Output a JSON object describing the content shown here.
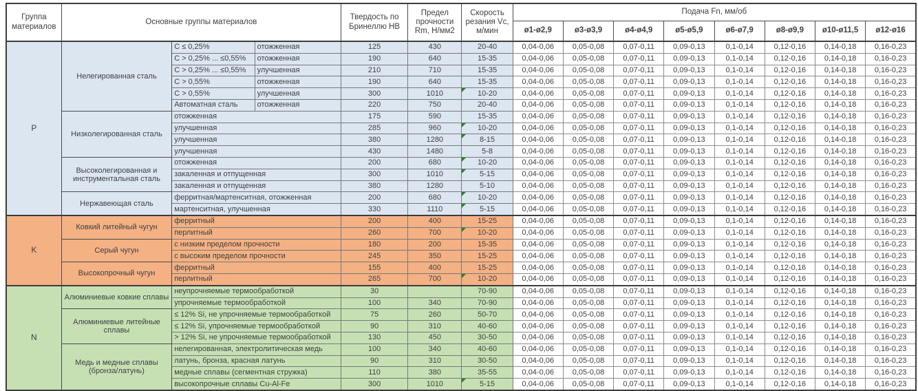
{
  "header": {
    "group": "Группа материалов",
    "main_groups": "Основные группы материалов",
    "hardness": "Твердость по Бринеллю HB",
    "strength": "Предел прочности Rm, Н/мм2",
    "speed": "Скорость резания Vc, м/мин",
    "feed": "Подача Fn, мм/об",
    "feed_columns": [
      "ø1-ø2,9",
      "ø3-ø3,9",
      "ø4-ø4,9",
      "ø5-ø5,9",
      "ø6-ø7,9",
      "ø8-ø9,9",
      "ø10-ø11,5",
      "ø12-ø16"
    ]
  },
  "feed_values": [
    "0,04-0,06",
    "0,05-0,08",
    "0,07-0,11",
    "0,09-0,13",
    "0,1-0,14",
    "0,12-0,16",
    "0,14-0,18",
    "0,16-0,23"
  ],
  "colors": {
    "P": "#DCE6F1",
    "K": "#F4B183",
    "N": "#C6E0B4",
    "indicator": "#1E8A1E"
  },
  "groups": [
    {
      "code": "P",
      "subgroups": [
        {
          "name": "Нелегированная сталь",
          "rows": [
            {
              "c1": "C ≤ 0,25%",
              "c2": "отожженная",
              "hb": "125",
              "rm": "430",
              "vc": "20-40",
              "flag": false
            },
            {
              "c1": "C > 0,25% ... ≤0,55%",
              "c2": "отожженная",
              "hb": "190",
              "rm": "640",
              "vc": "15-35",
              "flag": false
            },
            {
              "c1": "C > 0,25% ... ≤0,55%",
              "c2": "улучшенная",
              "hb": "210",
              "rm": "710",
              "vc": "15-35",
              "flag": false
            },
            {
              "c1": "C > 0,55%",
              "c2": "отожженная",
              "hb": "190",
              "rm": "640",
              "vc": "15-35",
              "flag": false
            },
            {
              "c1": "C > 0,55%",
              "c2": "улучшенная",
              "hb": "300",
              "rm": "1010",
              "vc": "10-20",
              "flag": true
            },
            {
              "c1": "Автоматная сталь",
              "c2": "отожженная",
              "hb": "220",
              "rm": "750",
              "vc": "20-40",
              "flag": false
            }
          ]
        },
        {
          "name": "Низколегированная сталь",
          "rows": [
            {
              "desc": "отожженная",
              "hb": "175",
              "rm": "590",
              "vc": "15-35",
              "flag": false
            },
            {
              "desc": "улучшенная",
              "hb": "285",
              "rm": "960",
              "vc": "10-20",
              "flag": true
            },
            {
              "desc": "улучшенная",
              "hb": "380",
              "rm": "1280",
              "vc": "8-15",
              "flag": true
            },
            {
              "desc": "улучшенная",
              "hb": "430",
              "rm": "1480",
              "vc": "5-8",
              "flag": false
            }
          ]
        },
        {
          "name": "Высоколегированная и инструментальная сталь",
          "rows": [
            {
              "desc": "отожженная",
              "hb": "200",
              "rm": "680",
              "vc": "10-20",
              "flag": true
            },
            {
              "desc": "закаленная и отпущенная",
              "hb": "300",
              "rm": "1010",
              "vc": "5-15",
              "flag": true
            },
            {
              "desc": "закаленная и отпущенная",
              "hb": "380",
              "rm": "1280",
              "vc": "5-10",
              "flag": false
            }
          ]
        },
        {
          "name": "Нержавеющая сталь",
          "rows": [
            {
              "desc": "ферритная/мартенситная, отожженная",
              "hb": "200",
              "rm": "680",
              "vc": "10-20",
              "flag": true
            },
            {
              "desc": "мартенситная, улучшенная",
              "hb": "330",
              "rm": "1110",
              "vc": "5-15",
              "flag": true
            }
          ]
        }
      ]
    },
    {
      "code": "K",
      "subgroups": [
        {
          "name": "Ковкий литейный чугун",
          "rows": [
            {
              "desc": "ферритный",
              "hb": "200",
              "rm": "400",
              "vc": "15-25",
              "flag": false
            },
            {
              "desc": "перлитный",
              "hb": "260",
              "rm": "700",
              "vc": "10-20",
              "flag": true
            }
          ]
        },
        {
          "name": "Серый чугун",
          "rows": [
            {
              "desc": "с низким пределом прочности",
              "hb": "180",
              "rm": "200",
              "vc": "15-35",
              "flag": false
            },
            {
              "desc": "с высоким пределом прочности",
              "hb": "245",
              "rm": "350",
              "vc": "15-25",
              "flag": false
            }
          ]
        },
        {
          "name": "Высокопрочный чугун",
          "rows": [
            {
              "desc": "ферритный",
              "hb": "155",
              "rm": "400",
              "vc": "15-25",
              "flag": false
            },
            {
              "desc": "перлитный",
              "hb": "265",
              "rm": "700",
              "vc": "10-20",
              "flag": true
            }
          ]
        }
      ]
    },
    {
      "code": "N",
      "subgroups": [
        {
          "name": "Алюминиевые ковкие сплавы",
          "rows": [
            {
              "desc": "неупрочняемые термообработкой",
              "hb": "30",
              "rm": "",
              "vc": "70-90",
              "flag": false
            },
            {
              "desc": "упрочняемые термообработкой",
              "hb": "100",
              "rm": "340",
              "vc": "70-90",
              "flag": false
            }
          ]
        },
        {
          "name": "Алюминиевые литейные сплавы",
          "rows": [
            {
              "desc": "≤ 12% Si, не упрочняемые термообработкой",
              "hb": "75",
              "rm": "260",
              "vc": "50-70",
              "flag": false
            },
            {
              "desc": "≤ 12% Si, упрочняемые термообработкой",
              "hb": "90",
              "rm": "310",
              "vc": "40-60",
              "flag": false
            },
            {
              "desc": "> 12% Si, не упрочняемые термообработкой",
              "hb": "130",
              "rm": "450",
              "vc": "30-50",
              "flag": false
            }
          ]
        },
        {
          "name": "Медь и медные сплавы (бронза/латунь)",
          "rows": [
            {
              "desc": "нелегированная, электролитическая медь",
              "hb": "100",
              "rm": "340",
              "vc": "40-60",
              "flag": false
            },
            {
              "desc": "латунь, бронза, красная латунь",
              "hb": "90",
              "rm": "310",
              "vc": "30-50",
              "flag": false
            },
            {
              "desc": "медные сплавы (сегментная стружка)",
              "hb": "110",
              "rm": "380",
              "vc": "35-55",
              "flag": false
            },
            {
              "desc": "высокопрочные сплавы Cu-Al-Fe",
              "hb": "300",
              "rm": "1010",
              "vc": "5-15",
              "flag": true
            }
          ]
        }
      ]
    }
  ]
}
